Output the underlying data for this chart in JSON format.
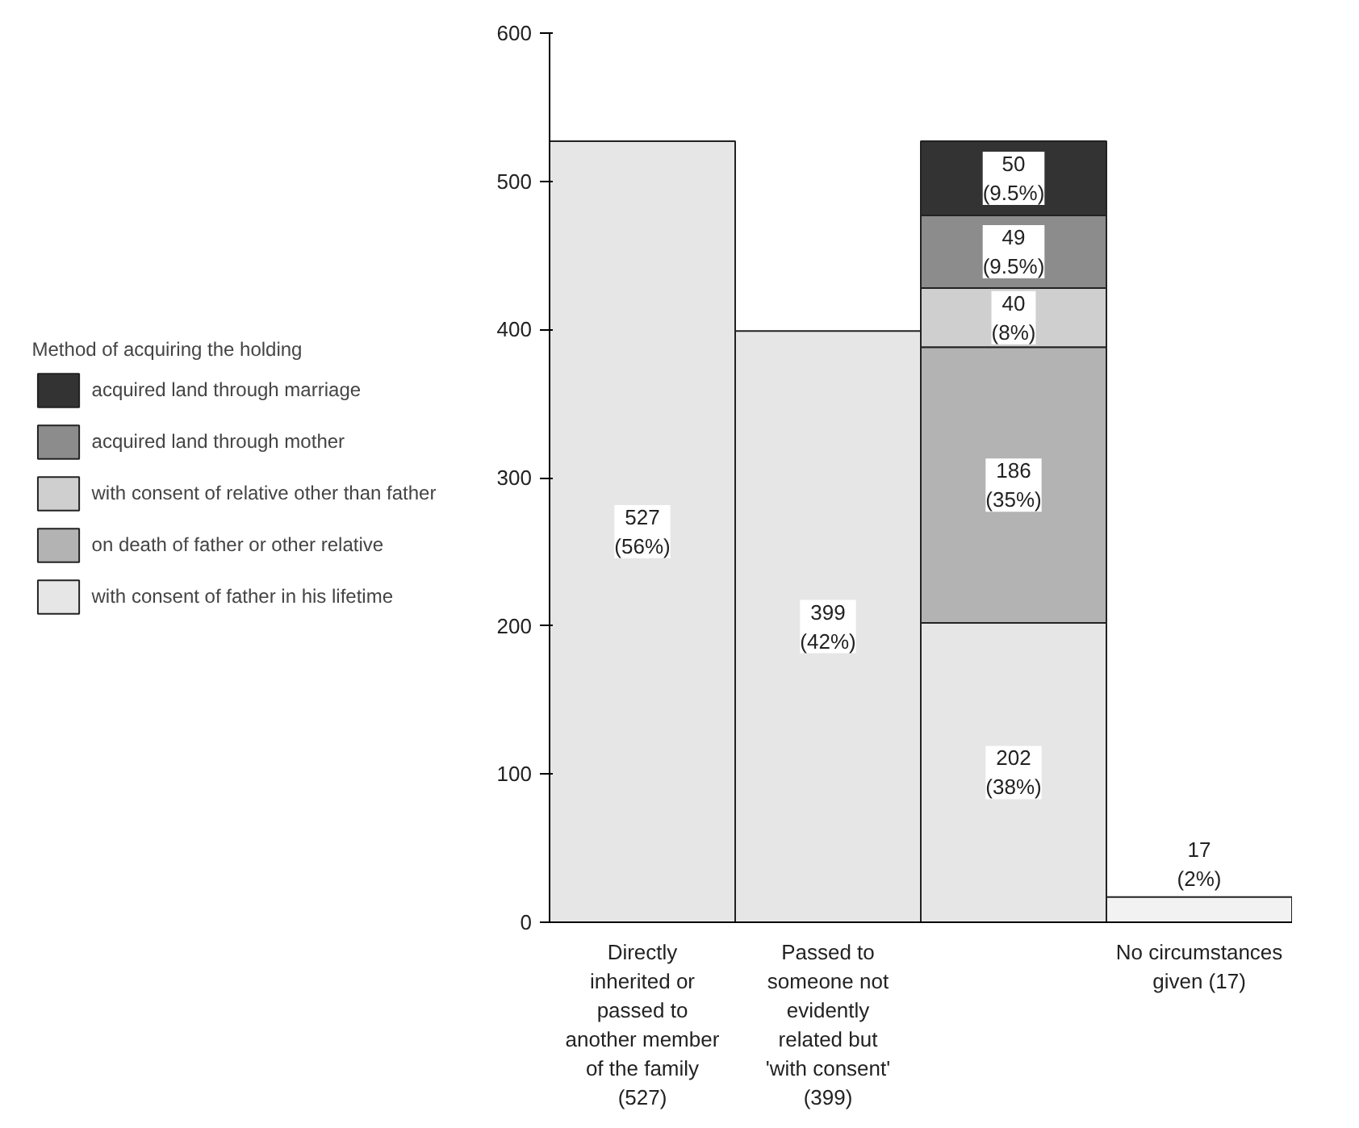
{
  "chart_data": {
    "type": "bar",
    "stacked": true,
    "legend_title": "Method of acquiring the holding",
    "legend": "left",
    "categories": [
      "Directly inherited or passed to another member of the family (527)",
      "Passed to someone not evidently related but 'with consent' (399)",
      null,
      "No circumstances given (17)"
    ],
    "series": [
      {
        "name": "with consent of father in his lifetime",
        "color": "#e6e6e6",
        "values": [
          527,
          399,
          202,
          null
        ],
        "value_labels": [
          "527\n(56%)",
          "399\n(42%)",
          "202\n(38%)",
          null
        ]
      },
      {
        "name": "on death of father or other relative",
        "color": "#b3b3b3",
        "values": [
          null,
          null,
          186,
          null
        ],
        "value_labels": [
          null,
          null,
          "186\n(35%)",
          null
        ]
      },
      {
        "name": "with consent of relative other than father",
        "color": "#cfcfcf",
        "values": [
          null,
          null,
          40,
          null
        ],
        "value_labels": [
          null,
          null,
          "40\n(8%)",
          null
        ]
      },
      {
        "name": "acquired land through mother",
        "color": "#8c8c8c",
        "values": [
          null,
          null,
          49,
          null
        ],
        "value_labels": [
          null,
          null,
          "49\n(9.5%)",
          null
        ]
      },
      {
        "name": "acquired land through marriage",
        "color": "#333333",
        "values": [
          null,
          null,
          50,
          null
        ],
        "value_labels": [
          null,
          null,
          "50\n(9.5%)",
          null
        ]
      },
      {
        "color": "#f2f2f2",
        "values": [
          null,
          null,
          null,
          17
        ],
        "value_labels": [
          null,
          null,
          null,
          "17\n(2%)"
        ]
      }
    ],
    "ylim": [
      0,
      600
    ],
    "yticks": [
      0,
      100,
      200,
      300,
      400,
      500,
      600
    ],
    "grid": false
  }
}
